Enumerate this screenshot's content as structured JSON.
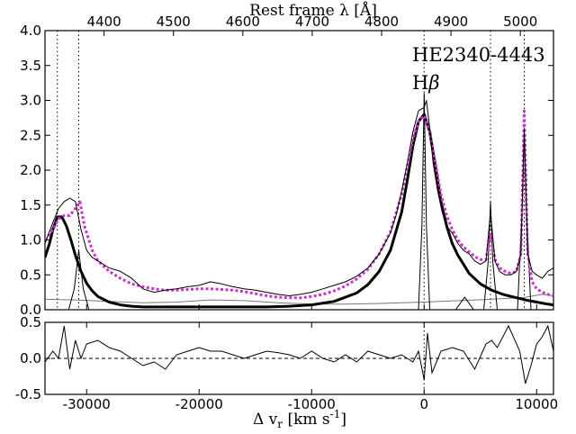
{
  "chart_data": [
    {
      "type": "line",
      "panel": "top",
      "title": "",
      "object_name": "HE2340-4443",
      "line_label": "Hβ",
      "xlabel": "Δ v_r [km s^-1]",
      "ylabel": "",
      "top_xlabel": "Rest frame λ [Å]",
      "xlim": [
        -33700,
        11500
      ],
      "ylim": [
        0.0,
        4.0
      ],
      "xticks": [
        -30000,
        -20000,
        -10000,
        0,
        10000
      ],
      "xtick_labels": [
        "-30000",
        "-20000",
        "-10000",
        "0",
        "10000"
      ],
      "yticks": [
        0.0,
        0.5,
        1.0,
        1.5,
        2.0,
        2.5,
        3.0,
        3.5,
        4.0
      ],
      "ytick_labels": [
        "0.0",
        "0.5",
        "1.0",
        "1.5",
        "2.0",
        "2.5",
        "3.0",
        "3.5",
        "4.0"
      ],
      "top_xticks": [
        4400,
        4500,
        4600,
        4700,
        4800,
        4900,
        5000
      ],
      "top_xtick_labels": [
        "4400",
        "4500",
        "4600",
        "4700",
        "4800",
        "4900",
        "5000"
      ],
      "line_markers_kms": [
        -32600,
        -30700,
        0,
        5900,
        8900
      ],
      "grid": false,
      "series": [
        {
          "role": "observed spectrum",
          "color": "#000000",
          "x": [
            -33700,
            -33000,
            -32500,
            -32000,
            -31500,
            -31000,
            -30500,
            -30000,
            -29500,
            -29000,
            -28000,
            -27000,
            -26000,
            -25000,
            -24000,
            -23000,
            -22000,
            -21000,
            -20000,
            -19000,
            -18000,
            -17000,
            -16000,
            -15000,
            -14000,
            -13000,
            -12000,
            -11000,
            -10000,
            -9000,
            -8000,
            -7000,
            -6000,
            -5000,
            -4000,
            -3000,
            -2500,
            -2000,
            -1500,
            -1000,
            -500,
            0,
            200,
            500,
            800,
            1200,
            1600,
            2000,
            2500,
            3000,
            3500,
            4000,
            4500,
            5000,
            5500,
            5900,
            6300,
            6700,
            7200,
            7700,
            8200,
            8600,
            8900,
            9200,
            9600,
            10000,
            10500,
            11000,
            11500
          ],
          "y": [
            0.95,
            1.25,
            1.45,
            1.55,
            1.6,
            1.55,
            1.15,
            0.85,
            0.75,
            0.7,
            0.6,
            0.55,
            0.45,
            0.3,
            0.25,
            0.28,
            0.3,
            0.33,
            0.35,
            0.4,
            0.37,
            0.33,
            0.3,
            0.28,
            0.25,
            0.22,
            0.2,
            0.22,
            0.25,
            0.3,
            0.35,
            0.4,
            0.48,
            0.6,
            0.8,
            1.1,
            1.35,
            1.7,
            2.1,
            2.55,
            2.85,
            2.9,
            3.0,
            2.6,
            2.1,
            1.7,
            1.4,
            1.2,
            1.1,
            0.95,
            0.85,
            0.8,
            0.7,
            0.65,
            0.7,
            1.4,
            0.7,
            0.55,
            0.5,
            0.5,
            0.55,
            0.8,
            2.6,
            0.8,
            0.55,
            0.5,
            0.45,
            0.55,
            0.6
          ]
        },
        {
          "role": "total fit",
          "color": "#cc33cc",
          "x": [
            -33700,
            -33000,
            -32500,
            -32000,
            -31500,
            -31000,
            -30600,
            -30200,
            -29500,
            -29000,
            -28000,
            -27000,
            -26000,
            -25000,
            -24000,
            -23000,
            -22000,
            -21000,
            -20000,
            -19000,
            -18000,
            -17000,
            -16000,
            -15000,
            -14000,
            -13000,
            -12000,
            -11000,
            -10000,
            -9000,
            -8000,
            -7000,
            -6000,
            -5000,
            -4000,
            -3000,
            -2000,
            -1500,
            -1000,
            -500,
            0,
            500,
            1000,
            1500,
            2000,
            2500,
            3000,
            3500,
            4000,
            4500,
            5000,
            5500,
            5900,
            6300,
            6700,
            7200,
            7700,
            8200,
            8600,
            8900,
            9200,
            9600,
            10000,
            10500,
            11000,
            11500
          ],
          "y": [
            1.0,
            1.15,
            1.3,
            1.35,
            1.35,
            1.45,
            1.55,
            1.2,
            0.85,
            0.7,
            0.55,
            0.45,
            0.37,
            0.33,
            0.3,
            0.28,
            0.28,
            0.29,
            0.3,
            0.3,
            0.29,
            0.28,
            0.26,
            0.23,
            0.2,
            0.18,
            0.17,
            0.17,
            0.19,
            0.22,
            0.27,
            0.34,
            0.44,
            0.58,
            0.8,
            1.12,
            1.65,
            2.05,
            2.45,
            2.7,
            2.78,
            2.55,
            2.1,
            1.65,
            1.35,
            1.15,
            1.0,
            0.9,
            0.83,
            0.76,
            0.72,
            0.72,
            1.1,
            0.72,
            0.6,
            0.55,
            0.52,
            0.55,
            0.8,
            2.85,
            0.8,
            0.4,
            0.3,
            0.25,
            0.22,
            0.2
          ]
        },
        {
          "role": "broad component",
          "color": "#000000",
          "x": [
            -33700,
            -33300,
            -33000,
            -32600,
            -32200,
            -31800,
            -31400,
            -31000,
            -30500,
            -30000,
            -29500,
            -29000,
            -28000,
            -27000,
            -26000,
            -25000,
            -24000,
            -22000,
            -20000,
            -18000,
            -16000,
            -14000,
            -12000,
            -10000,
            -8000,
            -6000,
            -5000,
            -4000,
            -3000,
            -2000,
            -1500,
            -1000,
            -500,
            0,
            500,
            1000,
            1500,
            2000,
            2500,
            3000,
            4000,
            5000,
            6000,
            7000,
            8000,
            9000,
            10000,
            11000,
            11500
          ],
          "y": [
            0.75,
            0.95,
            1.15,
            1.33,
            1.33,
            1.2,
            1.0,
            0.78,
            0.55,
            0.38,
            0.27,
            0.19,
            0.11,
            0.07,
            0.05,
            0.04,
            0.04,
            0.04,
            0.04,
            0.04,
            0.04,
            0.04,
            0.05,
            0.07,
            0.12,
            0.24,
            0.36,
            0.55,
            0.85,
            1.4,
            1.85,
            2.35,
            2.7,
            2.8,
            2.55,
            2.05,
            1.55,
            1.2,
            0.95,
            0.78,
            0.52,
            0.37,
            0.28,
            0.22,
            0.18,
            0.14,
            0.11,
            0.08,
            0.07
          ]
        },
        {
          "role": "narrow emission components",
          "color": "#000000",
          "x": [
            -31600,
            -31100,
            -30700,
            -30300,
            -29800,
            null,
            -500,
            -200,
            0,
            200,
            500,
            null,
            2800,
            3600,
            4400,
            null,
            5300,
            5700,
            5900,
            6100,
            6500,
            null,
            8300,
            8700,
            8900,
            9100,
            9500
          ],
          "y": [
            0.0,
            0.3,
            0.85,
            0.3,
            0.0,
            null,
            0.0,
            1.2,
            3.1,
            1.2,
            0.0,
            null,
            0.0,
            0.18,
            0.0,
            null,
            0.0,
            0.7,
            1.55,
            0.7,
            0.0,
            null,
            0.0,
            1.4,
            2.5,
            1.4,
            0.0
          ]
        },
        {
          "role": "Fe II / continuum template",
          "color": "#777777",
          "x": [
            -33700,
            -31000,
            -28000,
            -25000,
            -22000,
            -19000,
            -16000,
            -13000,
            -10000,
            -7000,
            -4000,
            -2000,
            0,
            3000,
            6000,
            9000,
            10500,
            11500
          ],
          "y": [
            0.15,
            0.14,
            0.12,
            0.1,
            0.11,
            0.14,
            0.13,
            0.1,
            0.08,
            0.08,
            0.09,
            0.1,
            0.11,
            0.13,
            0.15,
            0.18,
            0.22,
            0.2
          ]
        }
      ]
    },
    {
      "type": "line",
      "panel": "bottom",
      "title": "",
      "xlabel": "Δ v_r [km s^-1]",
      "ylabel": "",
      "xlim": [
        -33700,
        11500
      ],
      "ylim": [
        -0.5,
        0.5
      ],
      "yticks": [
        -0.5,
        0.0,
        0.5
      ],
      "ytick_labels": [
        "-0.5",
        "0.0",
        "0.5"
      ],
      "reference_line": 0.0,
      "line_markers_kms": [
        0
      ],
      "series": [
        {
          "role": "residuals",
          "color": "#000000",
          "x": [
            -33700,
            -33000,
            -32500,
            -32000,
            -31500,
            -31000,
            -30500,
            -30000,
            -29000,
            -28000,
            -27000,
            -26000,
            -25000,
            -24000,
            -23000,
            -22000,
            -21000,
            -20000,
            -19000,
            -18000,
            -17000,
            -16000,
            -15000,
            -14000,
            -13000,
            -12000,
            -11000,
            -10000,
            -9000,
            -8000,
            -7000,
            -6000,
            -5000,
            -4000,
            -3000,
            -2000,
            -1000,
            -500,
            0,
            300,
            700,
            1500,
            2500,
            3500,
            4500,
            5500,
            6000,
            6500,
            7500,
            8500,
            9000,
            9500,
            10000,
            10500,
            11000,
            11500
          ],
          "y": [
            -0.05,
            0.1,
            0.0,
            0.45,
            -0.15,
            0.25,
            0.0,
            0.2,
            0.25,
            0.15,
            0.1,
            0.0,
            -0.1,
            -0.05,
            -0.15,
            0.05,
            0.1,
            0.15,
            0.1,
            0.1,
            0.05,
            0.0,
            0.05,
            0.1,
            0.08,
            0.05,
            0.0,
            0.1,
            0.0,
            -0.05,
            0.05,
            -0.05,
            0.1,
            0.05,
            0.0,
            0.05,
            -0.05,
            0.1,
            -0.3,
            0.35,
            -0.2,
            0.1,
            0.15,
            0.1,
            -0.15,
            0.2,
            0.25,
            0.15,
            0.45,
            0.1,
            -0.35,
            -0.1,
            0.2,
            0.3,
            0.45,
            0.1
          ]
        }
      ]
    }
  ]
}
